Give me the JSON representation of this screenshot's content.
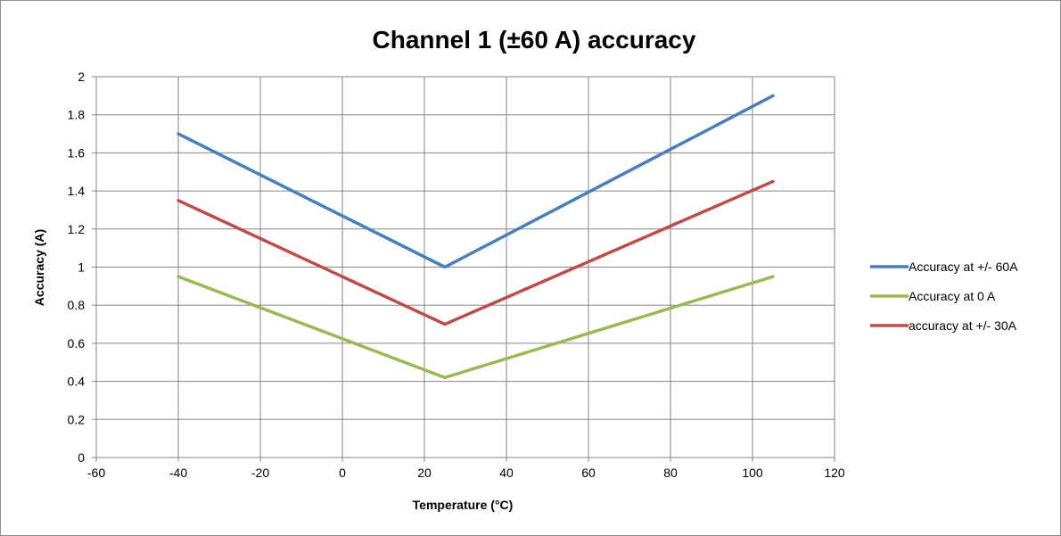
{
  "chart_data": {
    "type": "line",
    "title": "Channel 1 (±60 A) accuracy",
    "xlabel": "Temperature (°C)",
    "ylabel": "Accuracy (A)",
    "xlim": [
      -60,
      120
    ],
    "ylim": [
      0,
      2
    ],
    "x_ticks": [
      -60,
      -40,
      -20,
      0,
      20,
      40,
      60,
      80,
      100,
      120
    ],
    "y_ticks": [
      0,
      0.2,
      0.4,
      0.6,
      0.8,
      1,
      1.2,
      1.4,
      1.6,
      1.8,
      2
    ],
    "x_tick_labels": [
      "-60",
      "-40",
      "-20",
      "0",
      "20",
      "40",
      "60",
      "80",
      "100",
      "120"
    ],
    "y_tick_labels": [
      "0",
      "0.2",
      "0.4",
      "0.6",
      "0.8",
      "1",
      "1.2",
      "1.4",
      "1.6",
      "1.8",
      "2"
    ],
    "grid": true,
    "legend_position": "right",
    "series": [
      {
        "name": "Accuracy at +/- 60A",
        "color": "#4a7ebb",
        "x": [
          -40,
          25,
          105
        ],
        "y": [
          1.7,
          1.0,
          1.9
        ]
      },
      {
        "name": "Accuracy at 0 A",
        "color": "#98b954",
        "x": [
          -40,
          25,
          105
        ],
        "y": [
          0.95,
          0.42,
          0.95
        ]
      },
      {
        "name": "accuracy at +/- 30A",
        "color": "#be4b48",
        "x": [
          -40,
          25,
          105
        ],
        "y": [
          1.35,
          0.7,
          1.45
        ]
      }
    ]
  }
}
